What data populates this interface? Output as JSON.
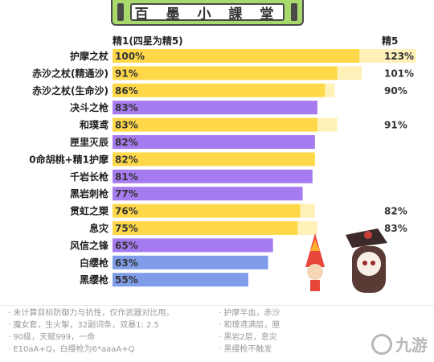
{
  "banner": {
    "title": "百 墨 小 課 堂"
  },
  "header": {
    "left": "精1(四星为精5)",
    "right": "精5"
  },
  "colors": {
    "yellow": "#ffd84a",
    "yellow_light": "#fff1b8",
    "purple": "#a77bf0",
    "blue": "#7f9ce8",
    "banner_green": "#a8d96a",
    "label_bg": "#f5d98a"
  },
  "chart_data": {
    "type": "bar",
    "title": "",
    "xlabel": "",
    "ylabel": "",
    "categories": [
      "护摩之杖",
      "赤沙之杖(精通沙)",
      "赤沙之杖(生命沙)",
      "决斗之枪",
      "和璞鸢",
      "匣里灭辰",
      "0命胡桃+精1护摩",
      "千岩长枪",
      "黑岩刺枪",
      "贯虹之槊",
      "息灾",
      "风信之锋",
      "白缨枪",
      "黑缨枪"
    ],
    "series": [
      {
        "values": [
          100,
          91,
          86,
          83,
          83,
          82,
          82,
          81,
          77,
          76,
          75,
          65,
          63,
          55
        ]
      },
      {
        "values": [
          123,
          101,
          90,
          null,
          91,
          null,
          null,
          null,
          null,
          82,
          83,
          null,
          null,
          null
        ]
      }
    ],
    "value_labels_r1": [
      "100%",
      "91%",
      "86%",
      "83%",
      "83%",
      "82%",
      "82%",
      "81%",
      "77%",
      "76%",
      "75%",
      "65%",
      "63%",
      "55%"
    ],
    "value_labels_r5": [
      "123%",
      "101%",
      "90%",
      "",
      "91%",
      "",
      "",
      "",
      "",
      "82%",
      "83%",
      "",
      "",
      ""
    ],
    "bar_colors": [
      "yellow",
      "yellow",
      "yellow",
      "purple",
      "yellow",
      "purple",
      "yellow",
      "purple",
      "purple",
      "yellow",
      "yellow",
      "purple",
      "blue",
      "blue"
    ],
    "xlim": [
      0,
      125
    ],
    "grid": false
  },
  "footer": {
    "left_notes": [
      "未计算目标防御力与抗性，仅作武器对比用。",
      "魔女套，生火掣，32副词条，双暴1: 2.5",
      "90级，天赋999，一命",
      "E10aA+Q，白缨枪为6*aaaA+Q"
    ],
    "right_notes": [
      "护摩半血，赤沙",
      "和璞鸢满层，匣",
      "黑岩2层，息灾",
      "黑缨枪不触发"
    ],
    "logo_text": "九游"
  }
}
